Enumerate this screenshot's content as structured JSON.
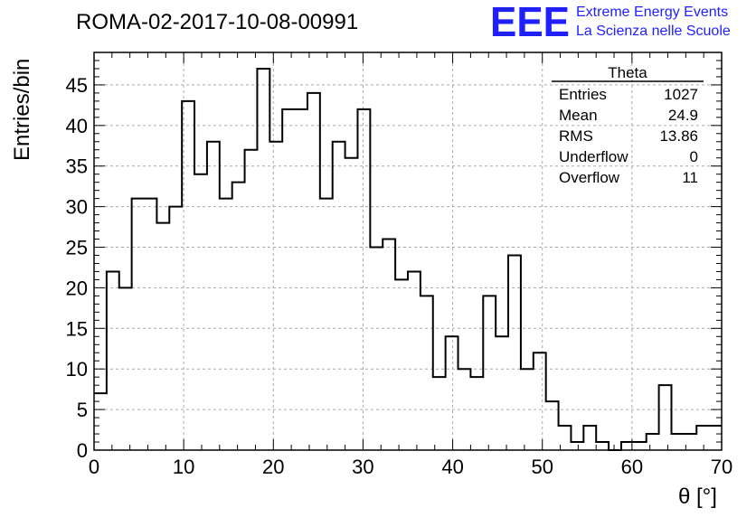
{
  "chart_data": {
    "type": "histogram",
    "title": "ROMA-02-2017-10-08-00991",
    "xlabel": "θ [°]",
    "ylabel": "Entries/bin",
    "xlim": [
      0,
      70
    ],
    "ylim": [
      0,
      49
    ],
    "xticks": [
      0,
      10,
      20,
      30,
      40,
      50,
      60,
      70
    ],
    "yticks": [
      0,
      5,
      10,
      15,
      20,
      25,
      30,
      35,
      40,
      45
    ],
    "grid": true,
    "bin_width": 1.4,
    "bin_edges_start": 0,
    "values": [
      7,
      22,
      20,
      31,
      31,
      28,
      30,
      43,
      34,
      38,
      31,
      33,
      37,
      47,
      38,
      42,
      42,
      44,
      31,
      38,
      36,
      42,
      25,
      26,
      21,
      22,
      19,
      9,
      14,
      10,
      9,
      19,
      14,
      24,
      10,
      12,
      6,
      3,
      1,
      3,
      1,
      0,
      1,
      1,
      2,
      8,
      2,
      2,
      3,
      3
    ],
    "stats_box": {
      "title": "Theta",
      "rows": [
        {
          "label": "Entries",
          "value": "1027"
        },
        {
          "label": "Mean",
          "value": "24.9"
        },
        {
          "label": "RMS",
          "value": "13.86"
        },
        {
          "label": "Underflow",
          "value": "0"
        },
        {
          "label": "Overflow",
          "value": "11"
        }
      ]
    },
    "logo": {
      "mark": "EEE",
      "line1": "Extreme Energy Events",
      "line2": "La Scienza nelle Scuole"
    },
    "colors": {
      "line": "#000000",
      "grid": "#aaaaaa",
      "logo": "#1f1fff"
    }
  }
}
